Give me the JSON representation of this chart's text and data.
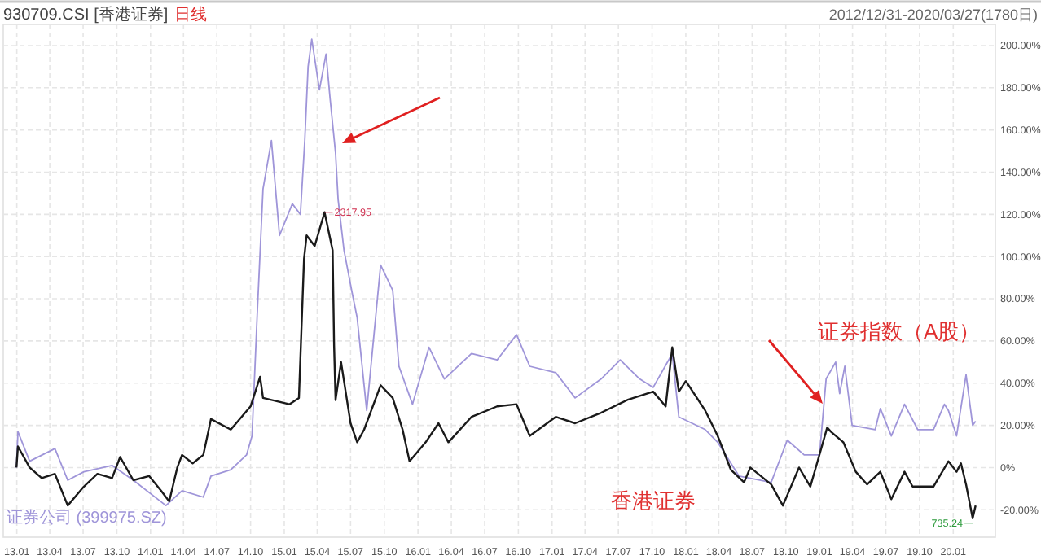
{
  "chart_data": {
    "type": "line",
    "title": "930709.CSI [香港证券]",
    "subtitle": "日线",
    "annotations": [
      "2012/12/31-2020/03/27(1780日)",
      "证券指数（A股）",
      "香港证券",
      {
        "text": "2317.95",
        "x": "2015-04-21",
        "y": 121
      },
      {
        "text": "735.24",
        "x": "2020-02-23",
        "y": -24
      }
    ],
    "xlim": [
      "2012-11-25",
      "2020-04-25"
    ],
    "xticks": [
      {
        "value": "2013-01-01",
        "label": "13.01"
      },
      {
        "value": "2013-04-01",
        "label": "13.04"
      },
      {
        "value": "2013-07-01",
        "label": "13.07"
      },
      {
        "value": "2013-10-01",
        "label": "13.10"
      },
      {
        "value": "2014-01-01",
        "label": "14.01"
      },
      {
        "value": "2014-04-01",
        "label": "14.04"
      },
      {
        "value": "2014-07-01",
        "label": "14.07"
      },
      {
        "value": "2014-10-01",
        "label": "14.10"
      },
      {
        "value": "2015-01-01",
        "label": "15.01"
      },
      {
        "value": "2015-04-01",
        "label": "15.04"
      },
      {
        "value": "2015-07-01",
        "label": "15.07"
      },
      {
        "value": "2015-10-01",
        "label": "15.10"
      },
      {
        "value": "2016-01-01",
        "label": "16.01"
      },
      {
        "value": "2016-04-01",
        "label": "16.04"
      },
      {
        "value": "2016-07-01",
        "label": "16.07"
      },
      {
        "value": "2016-10-01",
        "label": "16.10"
      },
      {
        "value": "2017-01-01",
        "label": "17.01"
      },
      {
        "value": "2017-04-01",
        "label": "17.04"
      },
      {
        "value": "2017-07-01",
        "label": "17.07"
      },
      {
        "value": "2017-10-01",
        "label": "17.10"
      },
      {
        "value": "2018-01-01",
        "label": "18.01"
      },
      {
        "value": "2018-04-01",
        "label": "18.04"
      },
      {
        "value": "2018-07-01",
        "label": "18.07"
      },
      {
        "value": "2018-10-01",
        "label": "18.10"
      },
      {
        "value": "2019-01-01",
        "label": "19.01"
      },
      {
        "value": "2019-04-01",
        "label": "19.04"
      },
      {
        "value": "2019-07-01",
        "label": "19.07"
      },
      {
        "value": "2019-10-01",
        "label": "19.10"
      },
      {
        "value": "2020-01-01",
        "label": "20.01"
      }
    ],
    "ylim": [
      -33,
      210
    ],
    "yticks": [
      {
        "value": -20,
        "label": "-20.00%"
      },
      {
        "value": 0,
        "label": "0%"
      },
      {
        "value": 20,
        "label": "20.00%"
      },
      {
        "value": 40,
        "label": "40.00%"
      },
      {
        "value": 60,
        "label": "60.00%"
      },
      {
        "value": 80,
        "label": "80.00%"
      },
      {
        "value": 100,
        "label": "100.00%"
      },
      {
        "value": 120,
        "label": "120.00%"
      },
      {
        "value": 140,
        "label": "140.00%"
      },
      {
        "value": 160,
        "label": "160.00%"
      },
      {
        "value": 180,
        "label": "180.00%"
      },
      {
        "value": 200,
        "label": "200.00%"
      }
    ],
    "grid": true,
    "legend": "bottom left",
    "line_style": "solid",
    "marker": "none",
    "series": [
      {
        "color": "#9f95d9",
        "name": "证券公司 (399975.SZ)",
        "x": [
          "2012-12-31",
          "2013-01-04",
          "2013-02-05",
          "2013-04-15",
          "2013-05-20",
          "2013-07-03",
          "2013-09-18",
          "2013-11-15",
          "2014-02-12",
          "2014-03-28",
          "2014-05-25",
          "2014-06-15",
          "2014-08-08",
          "2014-09-20",
          "2014-10-05",
          "2014-10-19",
          "2014-11-04",
          "2014-11-27",
          "2014-12-19",
          "2015-01-23",
          "2015-02-14",
          "2015-02-26",
          "2015-03-07",
          "2015-03-17",
          "2015-04-07",
          "2015-04-25",
          "2015-05-06",
          "2015-05-21",
          "2015-05-28",
          "2015-06-13",
          "2015-07-05",
          "2015-07-19",
          "2015-08-14",
          "2015-09-21",
          "2015-10-24",
          "2015-11-10",
          "2015-12-17",
          "2016-01-31",
          "2016-03-13",
          "2016-05-26",
          "2016-08-04",
          "2016-09-26",
          "2016-11-01",
          "2017-01-11",
          "2017-03-05",
          "2017-05-15",
          "2017-07-06",
          "2017-08-28",
          "2017-10-04",
          "2017-11-25",
          "2017-12-13",
          "2018-02-23",
          "2018-03-29",
          "2018-05-26",
          "2018-08-22",
          "2018-10-05",
          "2018-11-20",
          "2019-01-01",
          "2019-01-19",
          "2019-02-14",
          "2019-02-25",
          "2019-03-11",
          "2019-03-31",
          "2019-06-02",
          "2019-06-16",
          "2019-07-16",
          "2019-08-21",
          "2019-09-26",
          "2019-11-08",
          "2019-12-08",
          "2019-12-19",
          "2020-01-10",
          "2020-02-05",
          "2020-02-23",
          "2020-03-02"
        ],
        "values": [
          0,
          17,
          3,
          9,
          -6,
          -2,
          1,
          -6,
          -18,
          -11,
          -14,
          -4,
          -1,
          6,
          15,
          72,
          132,
          155,
          110,
          125,
          120,
          155,
          190,
          203,
          179,
          196,
          175,
          149,
          127,
          103,
          83,
          71,
          27,
          96,
          84,
          48,
          30,
          57,
          42,
          54,
          51,
          63,
          48,
          45,
          33,
          42,
          51,
          42,
          38,
          54,
          24,
          18,
          12,
          -4,
          -7,
          13,
          6,
          6,
          42,
          50,
          35,
          48,
          20,
          18,
          28,
          15,
          30,
          18,
          18,
          30,
          27,
          15,
          44,
          20,
          22
        ]
      },
      {
        "color": "#1a1a1a",
        "x": [
          "2012-12-31",
          "2013-01-04",
          "2013-02-05",
          "2013-03-10",
          "2013-04-15",
          "2013-05-20",
          "2013-07-03",
          "2013-08-09",
          "2013-09-18",
          "2013-10-10",
          "2013-11-15",
          "2013-12-28",
          "2014-01-30",
          "2014-02-21",
          "2014-03-15",
          "2014-03-28",
          "2014-04-26",
          "2014-05-25",
          "2014-06-15",
          "2014-08-08",
          "2014-10-01",
          "2014-10-27",
          "2014-11-04",
          "2015-01-15",
          "2015-02-10",
          "2015-02-24",
          "2015-03-03",
          "2015-03-25",
          "2015-04-21",
          "2015-05-13",
          "2015-05-17",
          "2015-05-21",
          "2015-06-05",
          "2015-07-01",
          "2015-07-19",
          "2015-08-07",
          "2015-09-21",
          "2015-10-24",
          "2015-11-20",
          "2015-12-09",
          "2016-01-22",
          "2016-02-26",
          "2016-03-24",
          "2016-05-26",
          "2016-08-04",
          "2016-09-26",
          "2016-11-01",
          "2017-01-11",
          "2017-03-05",
          "2017-05-15",
          "2017-07-25",
          "2017-10-04",
          "2017-11-07",
          "2017-11-25",
          "2017-12-13",
          "2018-01-01",
          "2018-02-23",
          "2018-03-29",
          "2018-05-04",
          "2018-06-09",
          "2018-06-26",
          "2018-08-22",
          "2018-09-23",
          "2018-11-06",
          "2018-12-07",
          "2019-01-22",
          "2019-02-01",
          "2019-03-07",
          "2019-04-10",
          "2019-05-11",
          "2019-06-16",
          "2019-07-16",
          "2019-08-21",
          "2019-09-12",
          "2019-11-08",
          "2019-12-19",
          "2020-01-10",
          "2020-01-22",
          "2020-02-05",
          "2020-02-23",
          "2020-03-02"
        ],
        "values": [
          0,
          10,
          0,
          -5,
          -3,
          -18,
          -9,
          -3,
          -5,
          5,
          -6,
          -4,
          -11,
          -16,
          0,
          6,
          2,
          6,
          23,
          18,
          29,
          43,
          33,
          30,
          33,
          99,
          110,
          105,
          121,
          103,
          58,
          32,
          50,
          21,
          12,
          18,
          39,
          33,
          18,
          3,
          12,
          21,
          12,
          24,
          29,
          30,
          15,
          24,
          21,
          26,
          32,
          36,
          29,
          57,
          36,
          41,
          27,
          15,
          -1,
          -7,
          0,
          -8,
          -18,
          0,
          -9,
          19,
          17,
          12,
          -2,
          -8,
          -2,
          -15,
          -2,
          -9,
          -9,
          3,
          -2,
          2,
          -8,
          -24,
          -18
        ]
      }
    ]
  }
}
